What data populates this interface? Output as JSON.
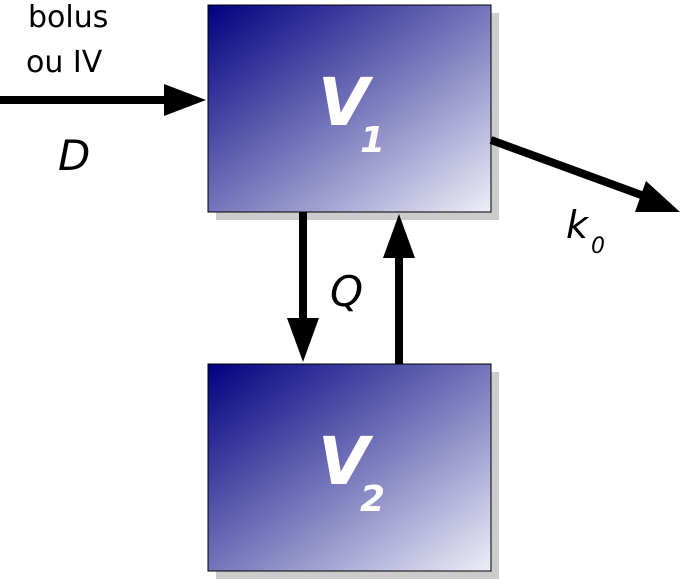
{
  "input_label_line1": "bolus",
  "input_label_line2": "ou IV",
  "dose_symbol": "D",
  "compartments": [
    {
      "symbol": "V",
      "subscript": "1"
    },
    {
      "symbol": "V",
      "subscript": "2"
    }
  ],
  "intercompartmental_clearance": "Q",
  "elimination": {
    "symbol": "k",
    "subscript": "0"
  },
  "colors": {
    "box_dark": "#000080",
    "box_light": "#eeeef8",
    "shadow": "#cccccc",
    "arrow": "#000000"
  }
}
